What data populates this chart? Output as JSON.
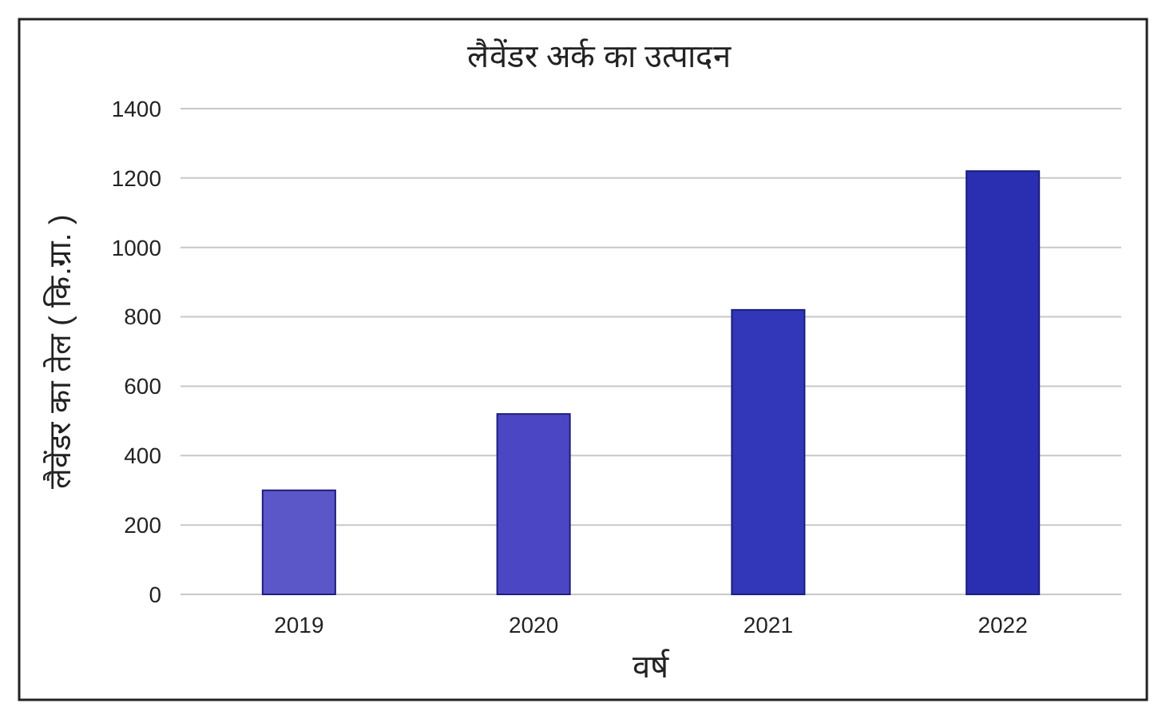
{
  "chart_data": {
    "type": "bar",
    "title": "लैवेंडर अर्क का उत्पादन",
    "xlabel": "वर्ष",
    "ylabel": "लैवेंडर का तेल ( कि.ग्रा. )",
    "categories": [
      "2019",
      "2020",
      "2021",
      "2022"
    ],
    "values": [
      300,
      520,
      820,
      1220
    ],
    "colors": [
      "#5b57c9",
      "#4b47c4",
      "#3236b8",
      "#2a2eb0"
    ],
    "ylim": [
      0,
      1400
    ],
    "yticks": [
      0,
      200,
      400,
      600,
      800,
      1000,
      1200,
      1400
    ],
    "grid": "y"
  }
}
